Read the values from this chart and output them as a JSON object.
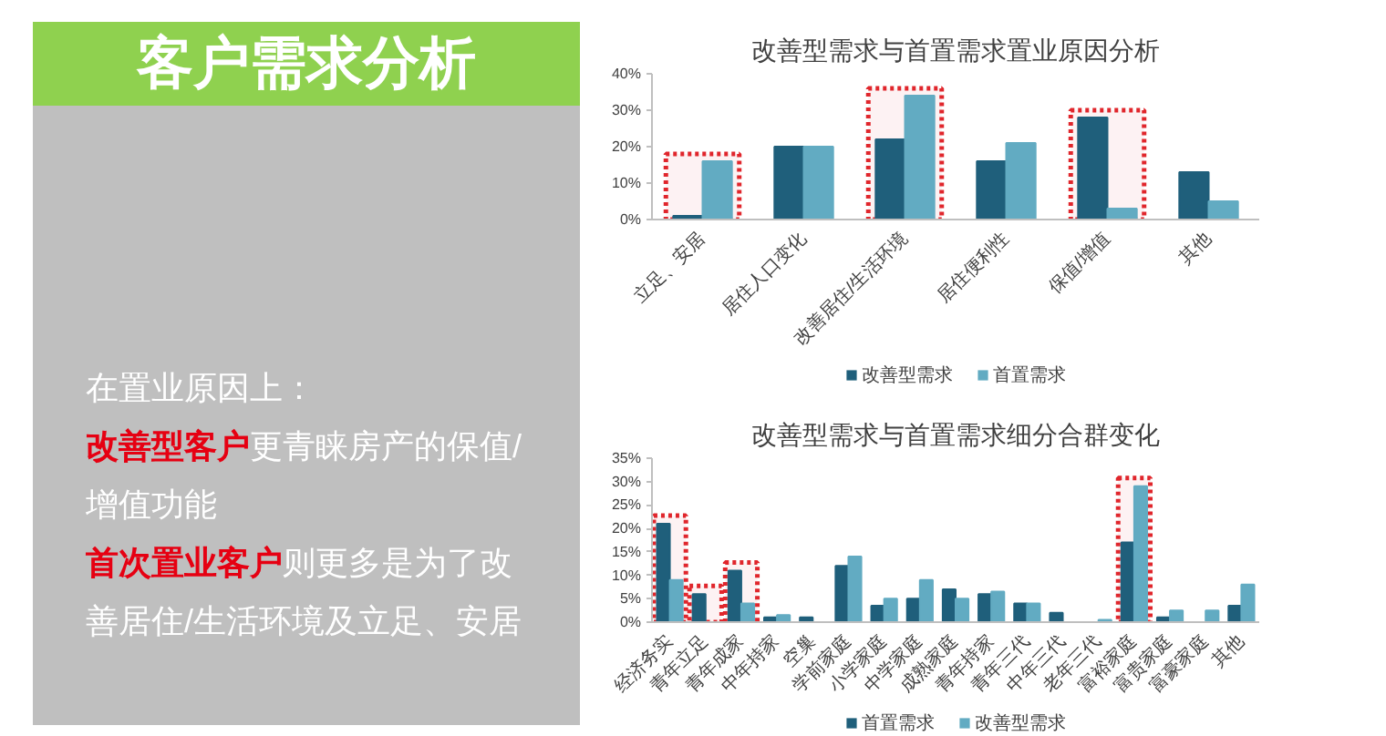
{
  "chart_data": [
    {
      "type": "other",
      "title": "客户需求分析",
      "annotations": [
        "在置业原因上：",
        "改善型客户",
        "更青睐房产的保值/",
        "增值功能",
        "首次置业客户",
        "则更多是为了改",
        "善居住/生活环境及立足、安居"
      ],
      "colors": [
        "#ffffff",
        "#e60012",
        "#ffffff",
        "#ffffff",
        "#e60012",
        "#ffffff",
        "#ffffff"
      ]
    },
    {
      "type": "bar",
      "title": "改善型需求与首置需求置业原因分析",
      "categories": [
        "立足、安居",
        "居住人口变化",
        "改善居住/生活环境",
        "居住便利性",
        "保值/增值",
        "其他"
      ],
      "series": [
        {
          "name": "改善型需求",
          "color": "#1f5f7b",
          "values": [
            1,
            20,
            22,
            16,
            28,
            13
          ]
        },
        {
          "name": "首置需求",
          "color": "#62abc2",
          "values": [
            16,
            20,
            34,
            21,
            3,
            5
          ]
        }
      ],
      "ylim": [
        0,
        40
      ],
      "yticks": [
        {
          "value": 0,
          "label": "0%"
        },
        {
          "value": 10,
          "label": "10%"
        },
        {
          "value": 20,
          "label": "20%"
        },
        {
          "value": 30,
          "label": "30%"
        },
        {
          "value": 40,
          "label": "40%"
        }
      ],
      "legend": "bottom",
      "bands": [
        {
          "axis": "x",
          "from": "立足、安居",
          "to": "立足、安居",
          "color": "#e0262c"
        },
        {
          "axis": "x",
          "from": "改善居住/生活环境",
          "to": "改善居住/生活环境",
          "color": "#e0262c"
        },
        {
          "axis": "x",
          "from": "保值/增值",
          "to": "保值/增值",
          "color": "#e0262c"
        }
      ]
    },
    {
      "type": "bar",
      "title": "改善型需求与首置需求细分合群变化",
      "categories": [
        "经济务实",
        "青年立足",
        "青年成家",
        "中年持家",
        "空巢",
        "学前家庭",
        "小学家庭",
        "中学家庭",
        "成熟家庭",
        "青年持家",
        "青年三代",
        "中年三代",
        "老年三代",
        "富裕家庭",
        "富贵家庭",
        "富豪家庭",
        "其他"
      ],
      "series": [
        {
          "name": "首置需求",
          "color": "#1f5f7b",
          "values": [
            21,
            6,
            11,
            1,
            1,
            12,
            3.5,
            5,
            7,
            6,
            4,
            2,
            0,
            17,
            1,
            0,
            3.5
          ]
        },
        {
          "name": "改善型需求",
          "color": "#62abc2",
          "values": [
            9,
            0,
            4,
            1.5,
            0,
            14,
            5,
            9,
            5,
            6.5,
            4,
            0,
            0.5,
            29,
            2.5,
            2.5,
            8
          ]
        }
      ],
      "ylim": [
        0,
        35
      ],
      "yticks": [
        {
          "value": 0,
          "label": "0%"
        },
        {
          "value": 5,
          "label": "5%"
        },
        {
          "value": 10,
          "label": "10%"
        },
        {
          "value": 15,
          "label": "15%"
        },
        {
          "value": 20,
          "label": "20%"
        },
        {
          "value": 25,
          "label": "25%"
        },
        {
          "value": 30,
          "label": "30%"
        },
        {
          "value": 35,
          "label": "35%"
        }
      ],
      "legend": "bottom",
      "bands": [
        {
          "axis": "x",
          "from": "经济务实",
          "to": "经济务实",
          "color": "#e0262c"
        },
        {
          "axis": "x",
          "from": "青年立足",
          "to": "青年立足",
          "color": "#e0262c"
        },
        {
          "axis": "x",
          "from": "青年成家",
          "to": "青年成家",
          "color": "#e0262c"
        },
        {
          "axis": "x",
          "from": "富裕家庭",
          "to": "富裕家庭",
          "color": "#e0262c"
        }
      ]
    }
  ]
}
